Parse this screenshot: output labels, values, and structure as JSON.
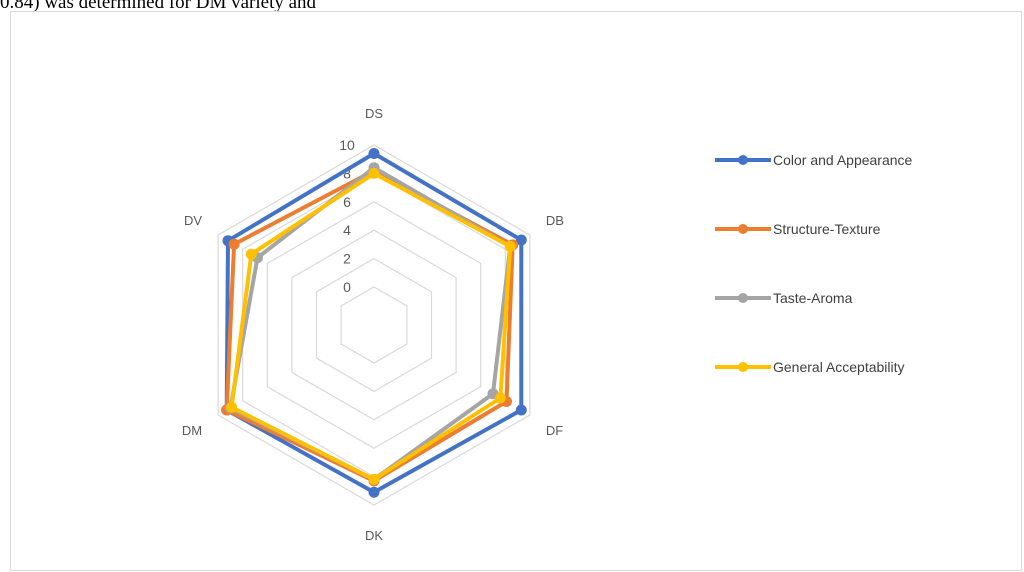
{
  "document": {
    "text_line": "0.84) was determined for DM variety and"
  },
  "chart_data": {
    "type": "radar",
    "axes": [
      "DS",
      "DB",
      "DF",
      "DK",
      "DM",
      "DV"
    ],
    "rlim": [
      0,
      10
    ],
    "ticks": [
      "0",
      "2",
      "4",
      "6",
      "8",
      "10"
    ],
    "grid": true,
    "legend_position": "right",
    "series": [
      {
        "name": "Color and Appearance",
        "color": "#4472C4",
        "values": [
          9.4,
          9.3,
          9.3,
          9.1,
          9.3,
          9.2
        ]
      },
      {
        "name": "Structure-Texture",
        "color": "#ED7D31",
        "values": [
          8.2,
          8.6,
          8.1,
          8.3,
          9.3,
          8.7
        ]
      },
      {
        "name": "Taste-Aroma",
        "color": "#A5A5A5",
        "values": [
          8.4,
          8.4,
          7.0,
          8.2,
          9.0,
          6.8
        ]
      },
      {
        "name": "General Acceptability",
        "color": "#FFC000",
        "values": [
          8.0,
          8.4,
          7.6,
          8.2,
          8.9,
          7.3
        ]
      }
    ]
  }
}
